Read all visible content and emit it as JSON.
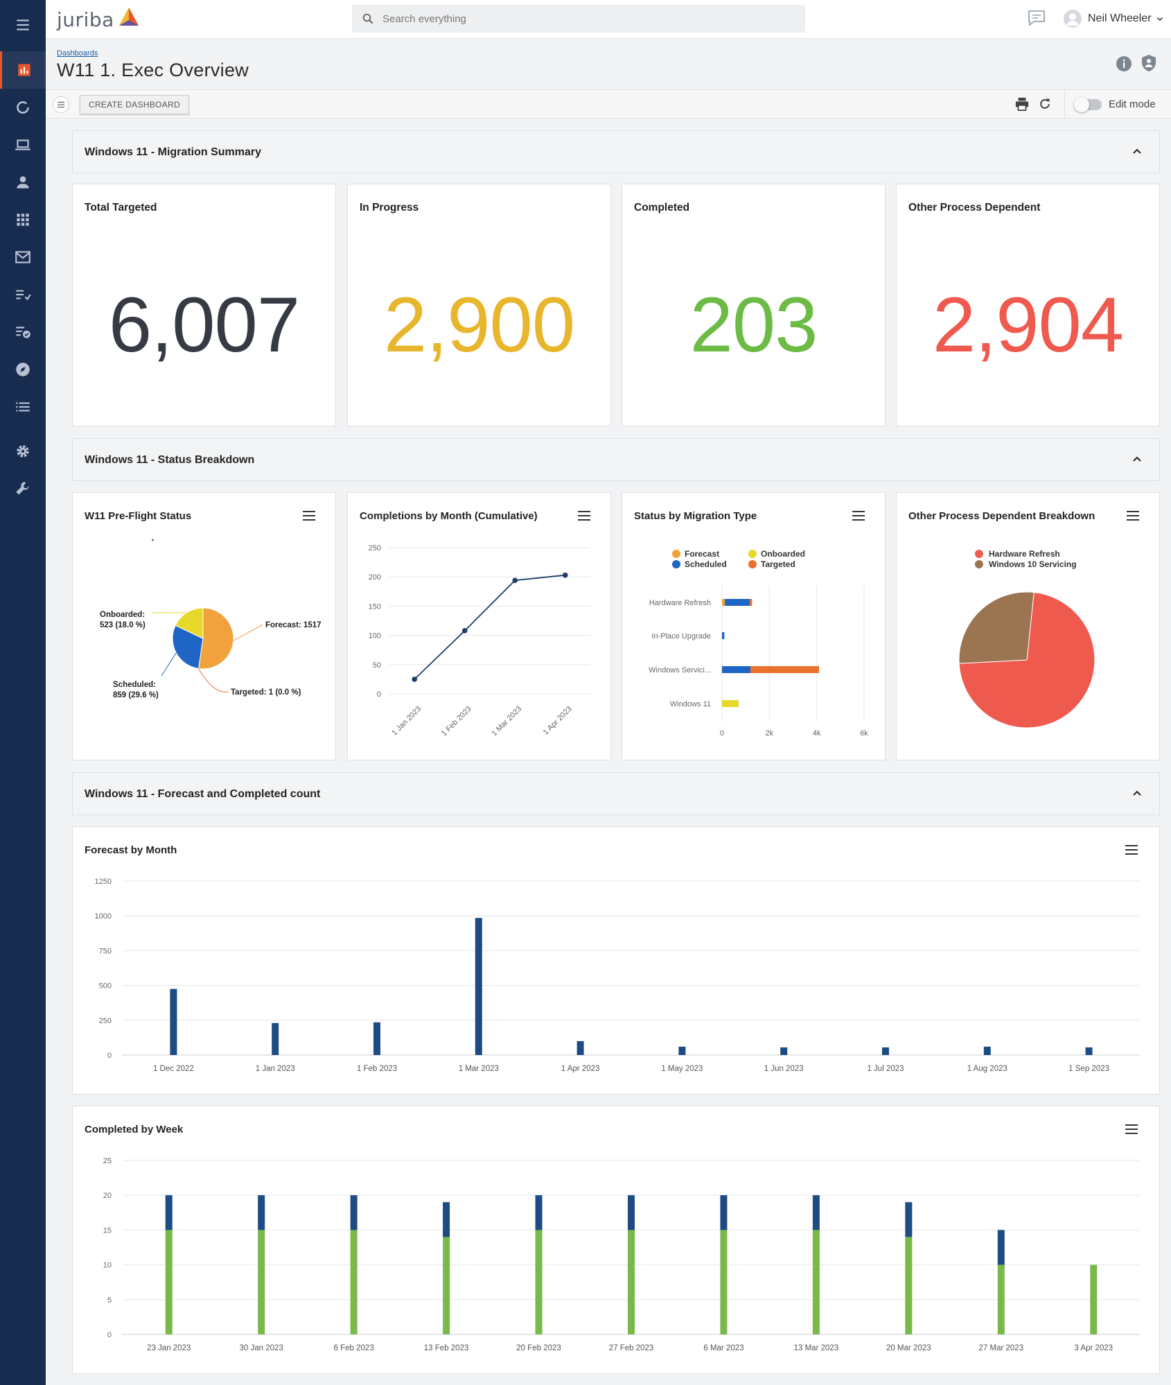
{
  "app": {
    "logo_text": "juriba",
    "user_name": "Neil Wheeler"
  },
  "search": {
    "placeholder": "Search everything"
  },
  "page": {
    "breadcrumb": "Dashboards",
    "title": "W11 1. Exec Overview"
  },
  "toolbar": {
    "create_label": "CREATE DASHBOARD",
    "edit_mode_label": "Edit mode"
  },
  "sidebar": {
    "items": [
      {
        "icon": "bar-chart-icon",
        "active": true
      },
      {
        "icon": "refresh-circle-icon"
      },
      {
        "icon": "laptop-icon"
      },
      {
        "icon": "person-icon"
      },
      {
        "icon": "apps-grid-icon"
      },
      {
        "icon": "mail-icon"
      },
      {
        "icon": "checklist-icon"
      },
      {
        "icon": "task-list-icon"
      },
      {
        "icon": "compass-icon"
      },
      {
        "icon": "list-icon"
      },
      {
        "icon": "gear-icon"
      },
      {
        "icon": "wrench-icon"
      }
    ]
  },
  "sections": {
    "summary": "Windows 11 - Migration Summary",
    "breakdown": "Windows 11 - Status Breakdown",
    "forecast": "Windows 11 - Forecast and Completed count"
  },
  "kpis": [
    {
      "label": "Total Targeted",
      "value": "6,007",
      "color": "#363a42"
    },
    {
      "label": "In Progress",
      "value": "2,900",
      "color": "#e8b62c"
    },
    {
      "label": "Completed",
      "value": "203",
      "color": "#6cbb45"
    },
    {
      "label": "Other Process Dependent",
      "value": "2,904",
      "color": "#ef5a4f"
    }
  ],
  "charts": {
    "preflight_title": "W11 Pre-Flight Status",
    "completions_title": "Completions by Month (Cumulative)",
    "migration_type_title": "Status by Migration Type",
    "opd_title": "Other Process Dependent Breakdown",
    "forecast_month_title": "Forecast by Month",
    "completed_week_title": "Completed by Week"
  },
  "chart_data": [
    {
      "type": "pie",
      "title": "W11 Pre-Flight Status",
      "slices": [
        {
          "label": "Forecast",
          "value": 1517,
          "color": "#f2a23c",
          "callout": "Forecast: 1517"
        },
        {
          "label": "Targeted",
          "value": 1,
          "color": "#e8722c",
          "callout": "Targeted: 1 (0.0 %)"
        },
        {
          "label": "Scheduled",
          "value": 859,
          "color": "#1f65c6",
          "callout": [
            "Scheduled:",
            "859 (29.6 %)"
          ]
        },
        {
          "label": "Onboarded",
          "value": 523,
          "color": "#e7d92a",
          "callout": [
            "Onboarded:",
            "523 (18.0 %)"
          ]
        }
      ]
    },
    {
      "type": "line",
      "title": "Completions by Month (Cumulative)",
      "categories": [
        "1 Jan 2023",
        "1 Feb 2023",
        "1 Mar 2023",
        "1 Apr 2023"
      ],
      "values": [
        25,
        108,
        194,
        203
      ],
      "ylim": [
        0,
        250
      ],
      "yticks": [
        0,
        50,
        100,
        150,
        200,
        250
      ],
      "color": "#1d3d6b",
      "grid": true
    },
    {
      "type": "bar",
      "orientation": "horizontal",
      "stacked": true,
      "title": "Status by Migration Type",
      "categories": [
        "Hardware Refresh",
        "In-Place Upgrade",
        "Windows Servici...",
        "Windows 11"
      ],
      "series": [
        {
          "name": "Forecast",
          "color": "#f2a23c",
          "values": [
            120,
            0,
            0,
            0
          ]
        },
        {
          "name": "Scheduled",
          "color": "#1f65c6",
          "values": [
            1050,
            100,
            1200,
            0
          ]
        },
        {
          "name": "Onboarded",
          "color": "#e7d92a",
          "values": [
            0,
            0,
            0,
            700
          ]
        },
        {
          "name": "Targeted",
          "color": "#e8722c",
          "values": [
            100,
            0,
            2900,
            0
          ]
        }
      ],
      "xlim": [
        0,
        6000
      ],
      "xticks": [
        "0",
        "2k",
        "4k",
        "6k"
      ],
      "legend_position": "top"
    },
    {
      "type": "pie",
      "title": "Other Process Dependent Breakdown",
      "slices": [
        {
          "label": "Hardware Refresh",
          "value": 72.5,
          "color": "#ef5a4f"
        },
        {
          "label": "Windows 10 Servicing",
          "value": 27.5,
          "color": "#9b7551"
        }
      ],
      "legend_position": "top"
    },
    {
      "type": "bar",
      "title": "Forecast by Month",
      "categories": [
        "1 Dec 2022",
        "1 Jan 2023",
        "1 Feb 2023",
        "1 Mar 2023",
        "1 Apr 2023",
        "1 May 2023",
        "1 Jun 2023",
        "1 Jul 2023",
        "1 Aug 2023",
        "1 Sep 2023"
      ],
      "values": [
        475,
        230,
        235,
        985,
        100,
        60,
        55,
        55,
        60,
        55
      ],
      "ylim": [
        0,
        1250
      ],
      "yticks": [
        0,
        250,
        500,
        750,
        1000,
        1250
      ],
      "color": "#1d4b84",
      "grid": true
    },
    {
      "type": "bar",
      "stacked": true,
      "title": "Completed by Week",
      "categories": [
        "23 Jan 2023",
        "30 Jan 2023",
        "6 Feb 2023",
        "13 Feb 2023",
        "20 Feb 2023",
        "27 Feb 2023",
        "6 Mar 2023",
        "13 Mar 2023",
        "20 Mar 2023",
        "27 Mar 2023",
        "3 Apr 2023"
      ],
      "series": [
        {
          "color": "#79b94a",
          "values": [
            15,
            15,
            15,
            14,
            15,
            15,
            15,
            15,
            14,
            10,
            10
          ]
        },
        {
          "color": "#1d4b84",
          "values": [
            5,
            5,
            5,
            5,
            5,
            5,
            5,
            5,
            5,
            5,
            0
          ]
        }
      ],
      "ylim": [
        0,
        25
      ],
      "yticks": [
        0,
        5,
        10,
        15,
        20,
        25
      ],
      "grid": true
    }
  ]
}
